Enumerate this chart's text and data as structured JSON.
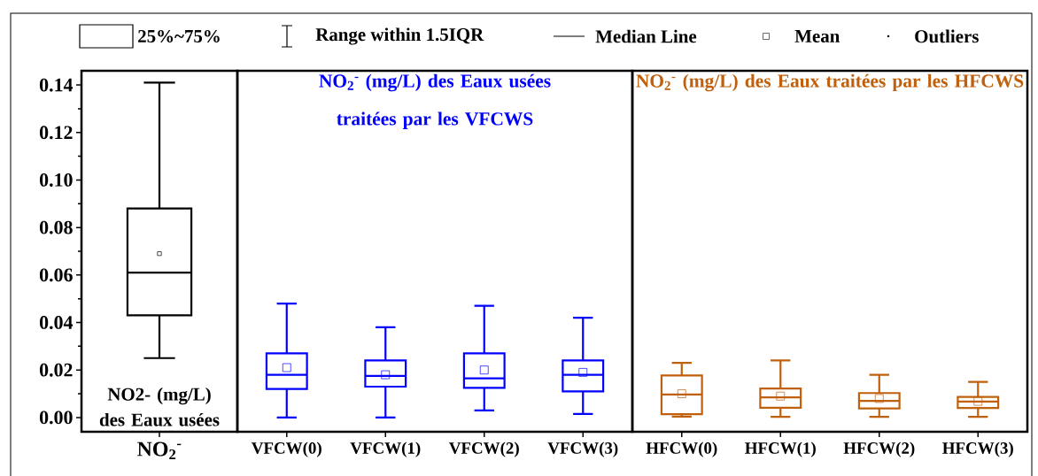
{
  "chart_data": [
    {
      "type": "other",
      "annotations": [
        "25%~75%",
        "Range within 1.5IQR",
        "Median Line",
        "Mean",
        "Outliers"
      ]
    },
    {
      "type": "box",
      "categories": [
        "NO$_{2}$$^{-}$"
      ],
      "color": "#000000",
      "annotations": [
        "NO2- (mg/L) des Eaux usées"
      ],
      "boxes": [
        {
          "low": 0.025,
          "q1": 0.043,
          "median": 0.061,
          "q3": 0.088,
          "high": 0.141,
          "mean": 0.069
        }
      ],
      "ylim": [
        -0.006,
        0.146
      ],
      "yticks": [
        {
          "value": 0,
          "label": "0.00"
        },
        {
          "value": 0.02,
          "label": "0.02"
        },
        {
          "value": 0.04,
          "label": "0.04"
        },
        {
          "value": 0.06,
          "label": "0.06"
        },
        {
          "value": 0.08,
          "label": "0.08"
        },
        {
          "value": 0.1,
          "label": "0.10"
        },
        {
          "value": 0.12,
          "label": "0.12"
        },
        {
          "value": 0.14,
          "label": "0.14"
        }
      ]
    },
    {
      "type": "box",
      "title": "NO$_{2}$$^{-}$ (mg/L) des Eaux usées traitées par les VFCWS",
      "categories": [
        "VFCW(0)",
        "VFCW(1)",
        "VFCW(2)",
        "VFCW(3)"
      ],
      "color": "#0000ff",
      "boxes": [
        {
          "low": 0.0,
          "q1": 0.012,
          "median": 0.018,
          "q3": 0.027,
          "high": 0.048,
          "mean": 0.021
        },
        {
          "low": 0.0,
          "q1": 0.013,
          "median": 0.0175,
          "q3": 0.024,
          "high": 0.038,
          "mean": 0.018
        },
        {
          "low": 0.003,
          "q1": 0.0125,
          "median": 0.0165,
          "q3": 0.027,
          "high": 0.047,
          "mean": 0.02
        },
        {
          "low": 0.0015,
          "q1": 0.011,
          "median": 0.018,
          "q3": 0.024,
          "high": 0.042,
          "mean": 0.019
        }
      ],
      "ylim": [
        -0.006,
        0.146
      ],
      "tick_labels": "x"
    },
    {
      "type": "box",
      "title": "NO$_{2}$$^{-}$ (mg/L) des Eaux traitées par les HFCWS",
      "categories": [
        "HFCW(0)",
        "HFCW(1)",
        "HFCW(2)",
        "HFCW(3)"
      ],
      "color": "#c0600c",
      "boxes": [
        {
          "low": 0.0004,
          "q1": 0.0014,
          "median": 0.0097,
          "q3": 0.0177,
          "high": 0.023,
          "mean": 0.01
        },
        {
          "low": 0.0003,
          "q1": 0.0041,
          "median": 0.0085,
          "q3": 0.0122,
          "high": 0.024,
          "mean": 0.009
        },
        {
          "low": 0.0003,
          "q1": 0.0038,
          "median": 0.007,
          "q3": 0.0103,
          "high": 0.018,
          "mean": 0.008
        },
        {
          "low": 0.0003,
          "q1": 0.004,
          "median": 0.0067,
          "q3": 0.0087,
          "high": 0.015,
          "mean": 0.0068
        }
      ],
      "ylim": [
        -0.006,
        0.146
      ],
      "tick_labels": "x"
    }
  ]
}
